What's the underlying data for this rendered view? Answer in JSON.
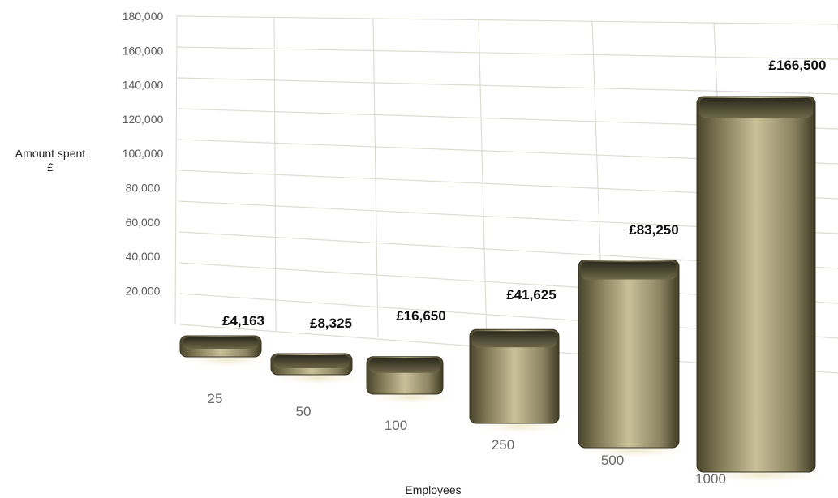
{
  "chart_data": {
    "type": "bar",
    "title": "",
    "xlabel": "Employees",
    "ylabel": "Amount spent",
    "ylabel_unit": "£",
    "categories": [
      "25",
      "50",
      "100",
      "250",
      "500",
      "1000"
    ],
    "values": [
      4163,
      8325,
      16650,
      41625,
      83250,
      166500
    ],
    "value_labels": [
      "£4,163",
      "£8,325",
      "£16,650",
      "£41,625",
      "£83,250",
      "£166,500"
    ],
    "yticks": [
      "20,000",
      "40,000",
      "60,000",
      "80,000",
      "100,000",
      "120,000",
      "140,000",
      "160,000",
      "180,000"
    ],
    "ylim": [
      0,
      180000
    ],
    "grid": true,
    "legend": "none",
    "bar_color": "#7d7552",
    "bar_highlight": "#cfc79e",
    "grid_color": "#dcdcd4"
  }
}
